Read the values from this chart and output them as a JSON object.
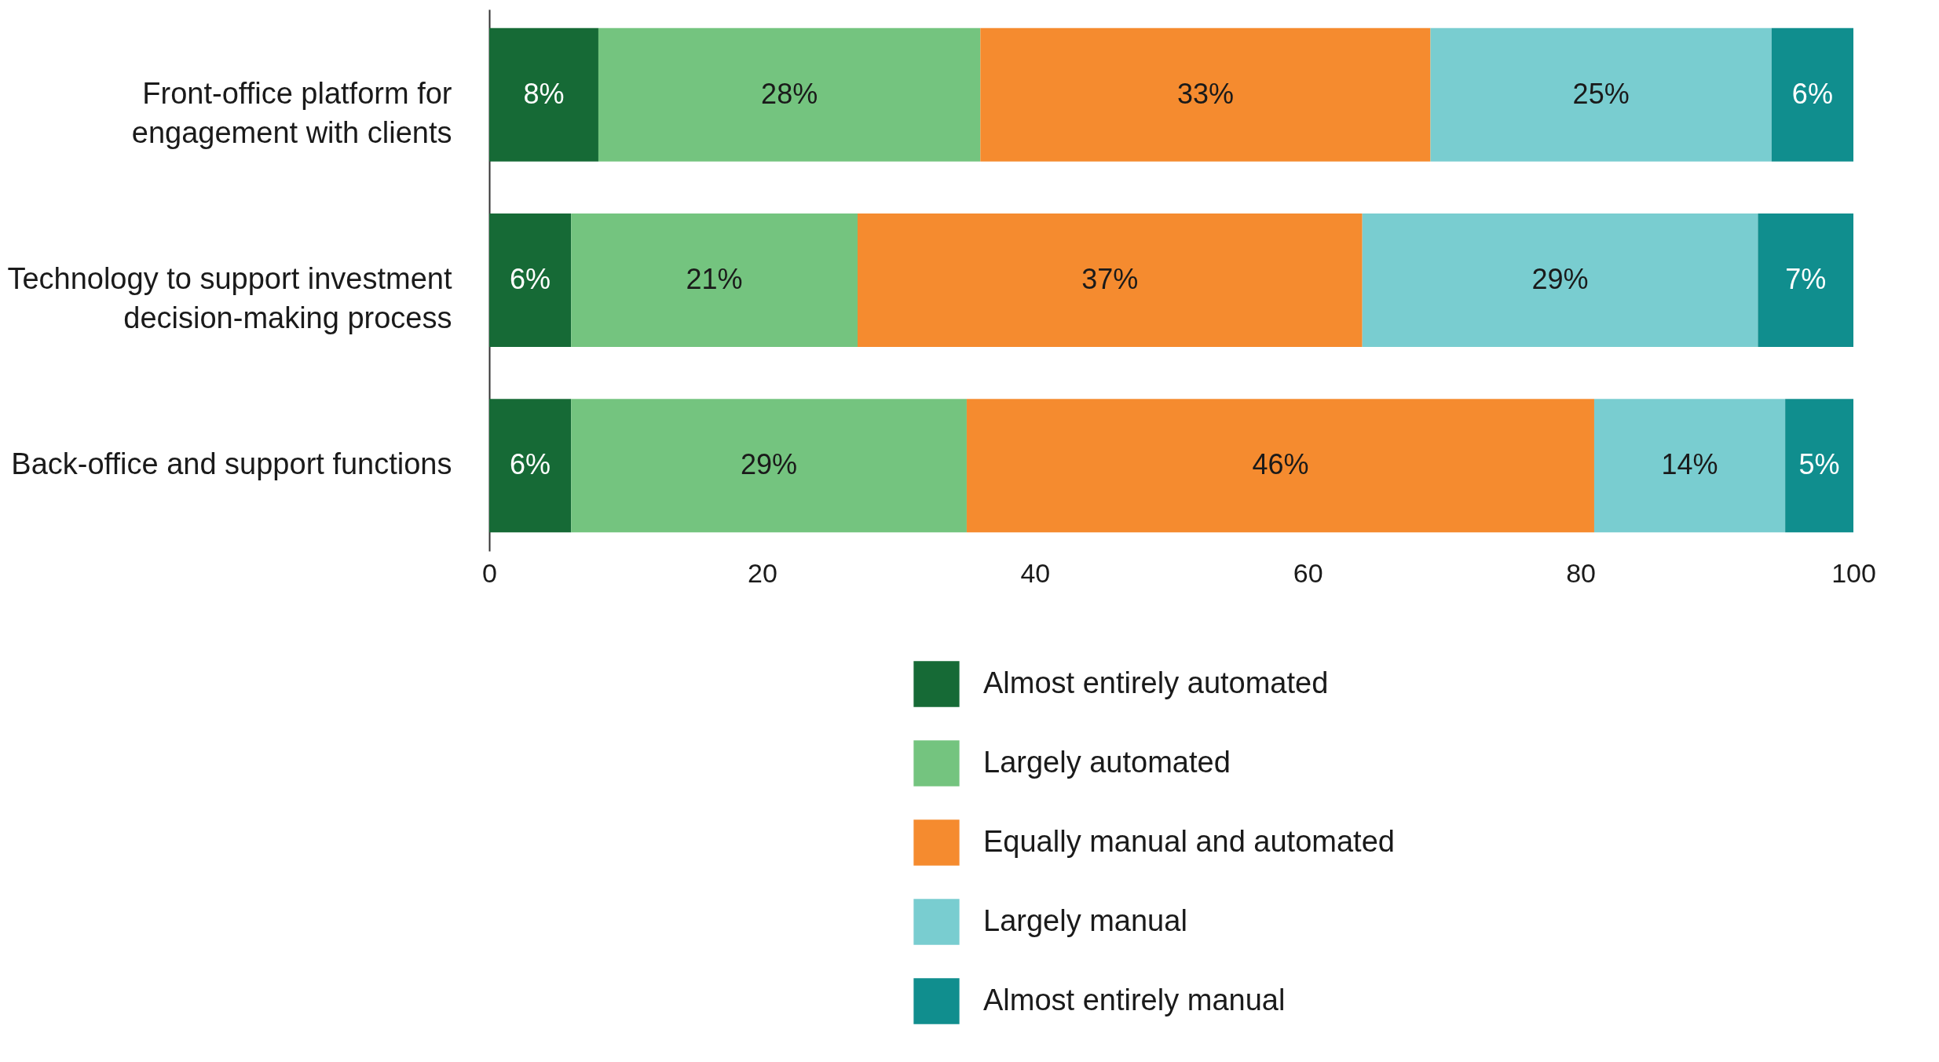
{
  "chart_data": {
    "type": "bar",
    "orientation": "horizontal",
    "stacked": true,
    "categories": [
      "Front-office platform for engagement with clients",
      "Technology to support investment decision-making process",
      "Back-office and support functions"
    ],
    "series": [
      {
        "name": "Almost entirely automated",
        "color": "#166a36",
        "values": [
          8,
          6,
          6
        ],
        "value_labels": [
          "8%",
          "6%",
          "6%"
        ]
      },
      {
        "name": "Largely automated",
        "color": "#74c47f",
        "values": [
          28,
          21,
          29
        ],
        "value_labels": [
          "28%",
          "21%",
          "29%"
        ]
      },
      {
        "name": "Equally manual and automated",
        "color": "#f58b2f",
        "values": [
          33,
          37,
          46
        ],
        "value_labels": [
          "33%",
          "37%",
          "46%"
        ]
      },
      {
        "name": "Largely manual",
        "color": "#79cdd0",
        "values": [
          25,
          29,
          14
        ],
        "value_labels": [
          "25%",
          "29%",
          "14%"
        ]
      },
      {
        "name": "Almost entirely manual",
        "color": "#108e8e",
        "values": [
          6,
          7,
          5
        ],
        "value_labels": [
          "6%",
          "7%",
          "5%"
        ]
      }
    ],
    "xlim": [
      0,
      100
    ],
    "xticks": [
      0,
      20,
      40,
      60,
      80,
      100
    ],
    "grid": false,
    "legend": "bottom"
  }
}
